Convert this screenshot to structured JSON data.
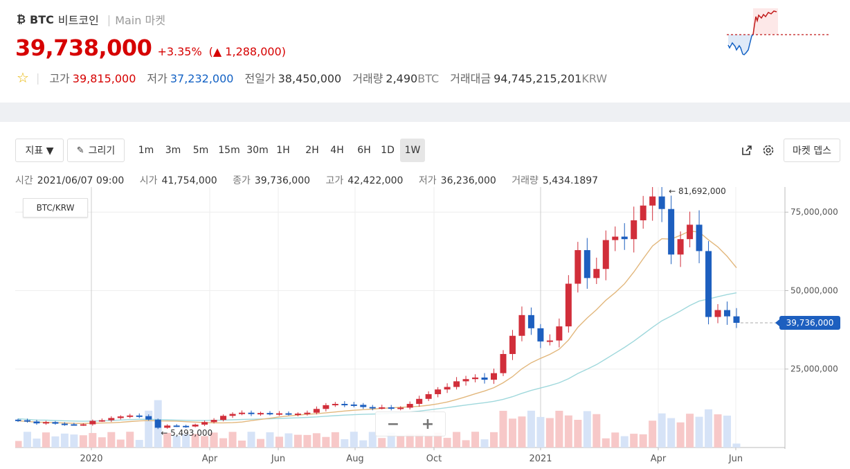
{
  "coin": {
    "icon": "bitcoin-icon",
    "icon_glyph": "₿",
    "symbol": "BTC",
    "name_ko": "비트코인",
    "separator": "|",
    "market": "Main 마켓"
  },
  "ticker": {
    "price": "39,738,000",
    "change_rate": "+3.35%",
    "change_amount": "(▲ 1,288,000)",
    "color_up": "#d60000",
    "color_down": "#1261c4"
  },
  "stats": {
    "high_label": "고가",
    "high": "39,815,000",
    "low_label": "저가",
    "low": "37,232,000",
    "prev_label": "전일가",
    "prev": "38,450,000",
    "vol_label": "거래량",
    "vol": "2,490",
    "vol_unit": "BTC",
    "amount_label": "거래대금",
    "amount": "94,745,215,201",
    "amount_unit": "KRW"
  },
  "toolbar": {
    "indicator": "지표 ▼",
    "draw": "그리기",
    "timeframes": [
      "1m",
      "3m",
      "5m",
      "15m",
      "30m",
      "1H",
      "2H",
      "4H",
      "6H",
      "1D",
      "1W"
    ],
    "selected": "1W",
    "market_depth": "마켓 뎁스"
  },
  "ohlc": {
    "time_label": "시간",
    "time": "2021/06/07 09:00",
    "open_label": "시가",
    "open": "41,754,000",
    "close_label": "종가",
    "close": "39,736,000",
    "high_label": "고가",
    "high": "42,422,000",
    "low_label": "저가",
    "low": "36,236,000",
    "vol_label": "거래량",
    "vol": "5,434.1897"
  },
  "pair_label": "BTC/KRW",
  "chart_data": {
    "type": "line",
    "title": "",
    "x_ticks": [
      "2020",
      "Apr",
      "Jun",
      "Aug",
      "Oct",
      "2021",
      "Apr",
      "Jun"
    ],
    "y_ticks": [
      "25,000,000",
      "50,000,000",
      "75,000,000"
    ],
    "y_tick_values": [
      25000000,
      50000000,
      75000000
    ],
    "ylim": [
      0,
      83000000
    ],
    "last_price_label": "39,736,000",
    "last_price": 39736000,
    "annotations": [
      {
        "label": "← 81,692,000",
        "value": 81692000
      },
      {
        "label": "← 5,493,000",
        "value": 5493000
      }
    ],
    "candles_close_estimated": [
      8700000,
      8300000,
      7700000,
      8100000,
      7600000,
      7400000,
      7300000,
      7400000,
      8500000,
      8700000,
      9400000,
      9900000,
      10200000,
      10000000,
      8900000,
      6300000,
      7000000,
      6900000,
      6700000,
      7300000,
      8100000,
      8800000,
      10100000,
      10700000,
      11100000,
      10700000,
      11000000,
      10800000,
      10900000,
      10600000,
      10800000,
      11100000,
      12300000,
      13500000,
      13900000,
      13700000,
      13600000,
      12900000,
      12700000,
      12800000,
      12600000,
      12700000,
      13900000,
      15500000,
      17000000,
      18500000,
      19300000,
      21100000,
      21800000,
      22300000,
      21600000,
      23700000,
      29800000,
      35600000,
      42200000,
      38000000,
      33800000,
      34100000,
      38600000,
      52200000,
      62900000,
      54000000,
      56900000,
      66100000,
      67200000,
      66400000,
      72400000,
      77100000,
      80000000,
      76000000,
      61500000,
      66400000,
      71000000,
      62600000,
      41600000,
      43800000,
      41800000,
      39736000
    ],
    "ma_slow_estimated": [
      7000000,
      12000000,
      25000000,
      34500000
    ],
    "ma_fast_estimated": [
      9500000,
      10500000,
      35000000,
      64000000,
      61000000
    ]
  }
}
